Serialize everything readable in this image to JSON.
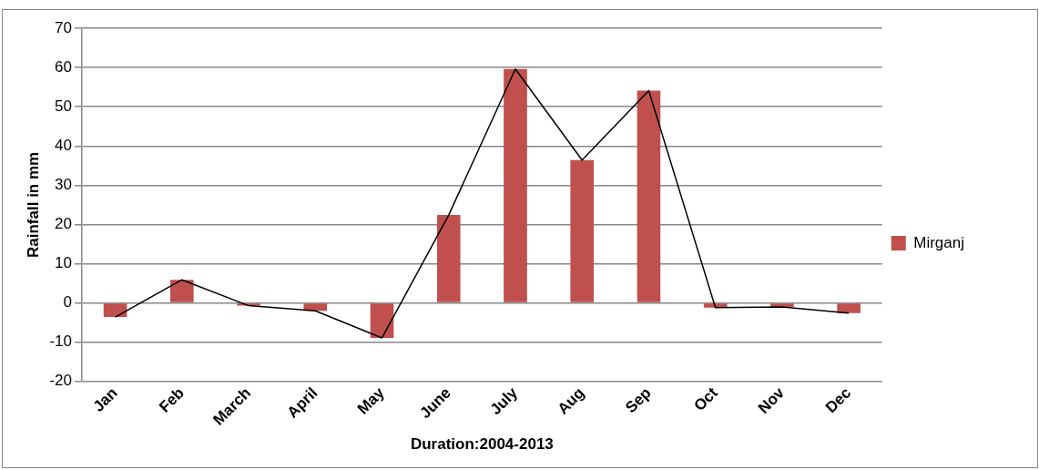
{
  "chart_data": {
    "type": "bar",
    "xlabel": "Duration:2004-2013",
    "ylabel": "Rainfall in mm",
    "categories": [
      "Jan",
      "Feb",
      "March",
      "April",
      "May",
      "June",
      "July",
      "Aug",
      "Sep",
      "Oct",
      "Nov",
      "Dec"
    ],
    "series": [
      {
        "name": "Mirganj",
        "color": "#c0504d",
        "values": [
          -3.6,
          5.9,
          -0.7,
          -2.0,
          -8.9,
          22.4,
          59.6,
          36.4,
          54.1,
          -1.2,
          -1.0,
          -2.6
        ]
      },
      {
        "type": "line",
        "color": "#000000",
        "values": [
          -3.6,
          5.9,
          -0.7,
          -2.0,
          -8.9,
          22.4,
          59.6,
          36.4,
          54.1,
          -1.2,
          -1.0,
          -2.6
        ]
      }
    ],
    "ylim": [
      -20,
      70
    ],
    "yticks": [
      -20,
      -10,
      0,
      10,
      20,
      30,
      40,
      50,
      60,
      70
    ],
    "grid": "y",
    "legend": "right",
    "marker": "none"
  }
}
